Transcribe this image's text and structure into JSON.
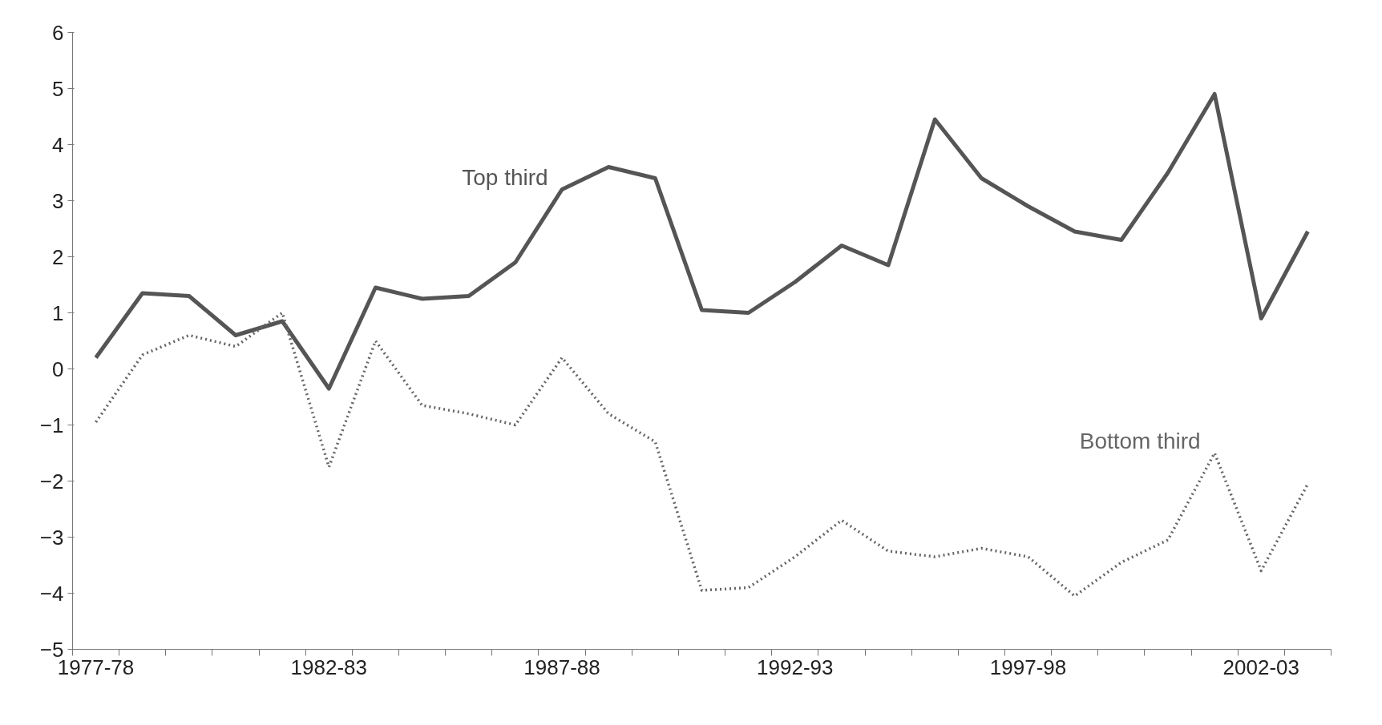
{
  "chart_data": {
    "type": "line",
    "categories": [
      "1977-78",
      null,
      null,
      null,
      null,
      "1982-83",
      null,
      null,
      null,
      null,
      "1987-88",
      null,
      null,
      null,
      null,
      "1992-93",
      null,
      null,
      null,
      null,
      "1997-98",
      null,
      null,
      null,
      null,
      "2002-03",
      null
    ],
    "series": [
      {
        "name": "Top third",
        "color": "#555555",
        "line_style": "solid",
        "values": [
          0.2,
          1.35,
          1.3,
          0.6,
          0.85,
          -0.35,
          1.45,
          1.25,
          1.3,
          1.9,
          3.2,
          3.6,
          3.4,
          1.05,
          1.0,
          1.55,
          2.2,
          1.85,
          4.45,
          3.4,
          2.9,
          2.45,
          2.3,
          3.5,
          4.9,
          0.9,
          2.45
        ]
      },
      {
        "name": "Bottom third",
        "color": "#666666",
        "line_style": "dotted",
        "values": [
          -0.95,
          0.25,
          0.6,
          0.4,
          1.0,
          -1.75,
          0.5,
          -0.65,
          -0.8,
          -1.0,
          0.2,
          -0.8,
          -1.3,
          -3.95,
          -3.9,
          -3.35,
          -2.7,
          -3.25,
          -3.35,
          -3.2,
          -3.35,
          -4.05,
          -3.45,
          -3.05,
          -1.5,
          -3.6,
          -2.05
        ]
      }
    ],
    "ylim": [
      -5,
      6
    ],
    "yticks": [
      -5,
      -4,
      -3,
      -2,
      -1,
      0,
      1,
      2,
      3,
      4,
      5,
      6
    ],
    "grid": false,
    "legend": false,
    "marker": "none"
  }
}
